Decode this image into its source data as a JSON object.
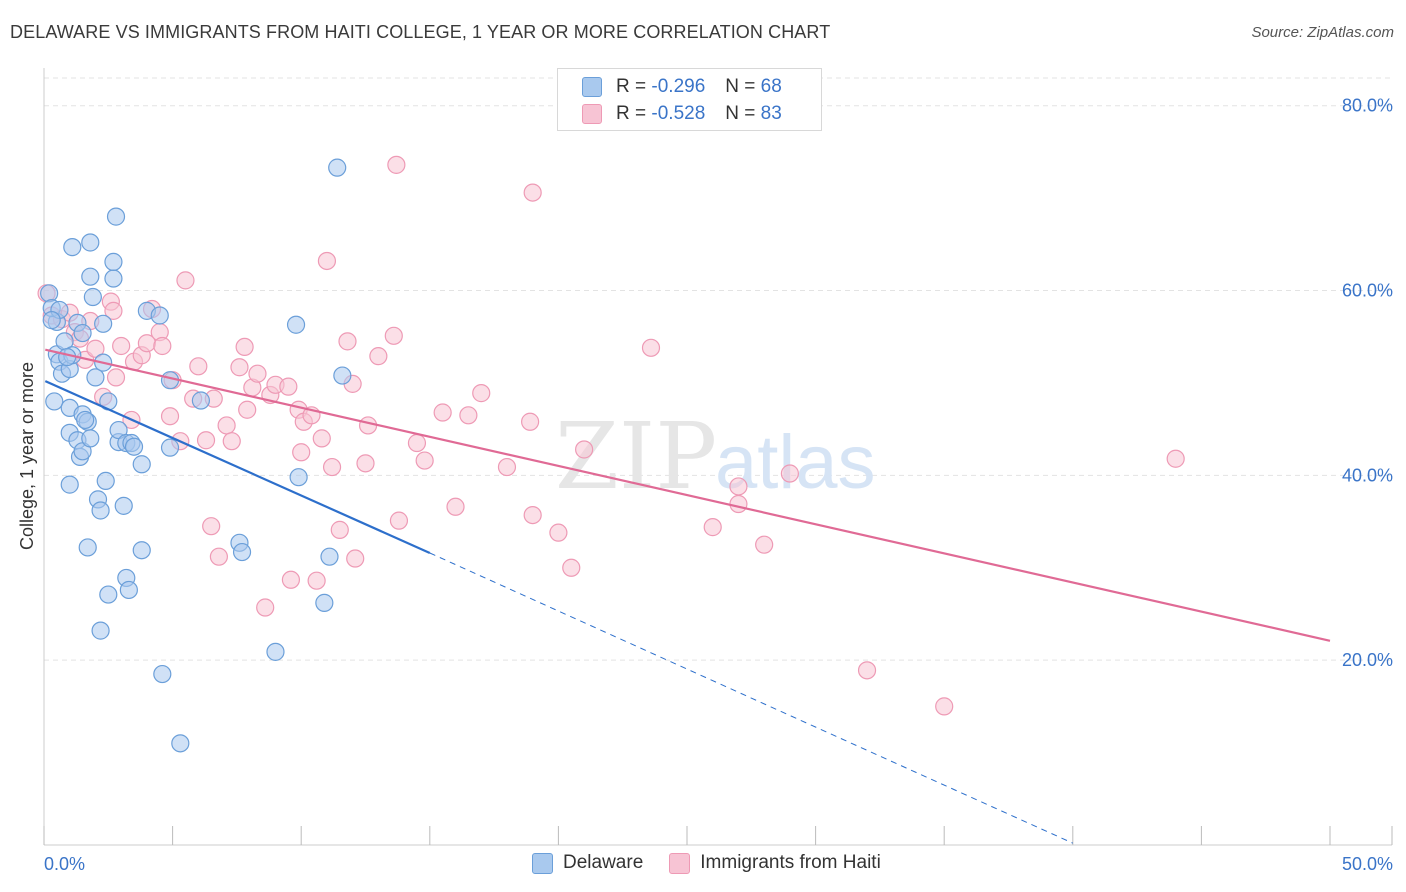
{
  "header": {
    "title": "DELAWARE VS IMMIGRANTS FROM HAITI COLLEGE, 1 YEAR OR MORE CORRELATION CHART",
    "source": "Source: ZipAtlas.com"
  },
  "watermark": {
    "zip": "ZIP",
    "atlas": "atlas"
  },
  "legend": {
    "rows": [
      {
        "r_label": "R =",
        "r_value": "-0.296",
        "n_label": "N =",
        "n_value": "68",
        "color": "#9cc1ec"
      },
      {
        "r_label": "R =",
        "r_value": "-0.528",
        "n_label": "N =",
        "n_value": "83",
        "color": "#f5b8cb"
      }
    ],
    "bottom": [
      "Delaware",
      "Immigrants from Haiti"
    ]
  },
  "colors": {
    "delaware_fill": "#a9c9ee",
    "delaware_stroke": "#6b9fd9",
    "delaware_line": "#2d6fcb",
    "haiti_fill": "#f7c4d4",
    "haiti_stroke": "#ee9ab5",
    "haiti_line": "#e06a95",
    "axis_text": "#3a74c8",
    "grid": "#e3e3e3"
  },
  "chart_data": {
    "type": "scatter",
    "title": "DELAWARE VS IMMIGRANTS FROM HAITI COLLEGE, 1 YEAR OR MORE CORRELATION CHART",
    "xlabel": "",
    "ylabel": "College, 1 year or more",
    "xlim": [
      0,
      50
    ],
    "ylim": [
      0,
      83
    ],
    "x_tick_labels": [
      "0.0%",
      "50.0%"
    ],
    "y_ticks": [
      20,
      40,
      60,
      80
    ],
    "y_tick_labels": [
      "20.0%",
      "40.0%",
      "60.0%",
      "80.0%"
    ],
    "grid": true,
    "legend_position": "top-center",
    "series": [
      {
        "name": "Delaware",
        "R": -0.296,
        "N": 68,
        "trend": {
          "x": [
            0.05,
            15
          ],
          "y": [
            50.2,
            31.6
          ],
          "extended_to": [
            40,
            0.2
          ]
        },
        "points": [
          [
            0.2,
            59.7
          ],
          [
            0.5,
            56.6
          ],
          [
            0.3,
            58.1
          ],
          [
            0.6,
            57.9
          ],
          [
            0.3,
            56.8
          ],
          [
            0.5,
            53.1
          ],
          [
            0.8,
            54.5
          ],
          [
            0.6,
            52.3
          ],
          [
            0.7,
            51.0
          ],
          [
            1.0,
            51.5
          ],
          [
            1.3,
            56.5
          ],
          [
            1.1,
            53.0
          ],
          [
            1.5,
            55.4
          ],
          [
            0.9,
            52.8
          ],
          [
            0.4,
            48.0
          ],
          [
            1.0,
            47.3
          ],
          [
            1.0,
            44.6
          ],
          [
            1.3,
            43.8
          ],
          [
            1.4,
            42.0
          ],
          [
            1.5,
            42.6
          ],
          [
            1.5,
            46.6
          ],
          [
            1.7,
            45.8
          ],
          [
            1.8,
            44.0
          ],
          [
            1.6,
            46.0
          ],
          [
            2.0,
            50.6
          ],
          [
            2.3,
            56.4
          ],
          [
            2.3,
            52.2
          ],
          [
            2.5,
            48.0
          ],
          [
            2.7,
            61.3
          ],
          [
            2.7,
            63.1
          ],
          [
            2.8,
            68.0
          ],
          [
            1.8,
            61.5
          ],
          [
            1.8,
            65.2
          ],
          [
            1.1,
            64.7
          ],
          [
            1.9,
            59.3
          ],
          [
            2.9,
            43.6
          ],
          [
            2.9,
            44.9
          ],
          [
            3.2,
            43.5
          ],
          [
            3.4,
            43.5
          ],
          [
            3.5,
            43.1
          ],
          [
            3.8,
            41.2
          ],
          [
            4.0,
            57.8
          ],
          [
            4.5,
            57.3
          ],
          [
            4.9,
            43.0
          ],
          [
            4.9,
            50.3
          ],
          [
            2.4,
            39.4
          ],
          [
            2.1,
            37.4
          ],
          [
            2.2,
            36.2
          ],
          [
            3.1,
            36.7
          ],
          [
            1.0,
            39.0
          ],
          [
            1.7,
            32.2
          ],
          [
            3.8,
            31.9
          ],
          [
            3.2,
            28.9
          ],
          [
            3.3,
            27.6
          ],
          [
            2.5,
            27.1
          ],
          [
            2.2,
            23.2
          ],
          [
            4.6,
            18.5
          ],
          [
            5.3,
            11.0
          ],
          [
            7.6,
            32.7
          ],
          [
            7.7,
            31.7
          ],
          [
            9.0,
            20.9
          ],
          [
            9.8,
            56.3
          ],
          [
            9.9,
            39.8
          ],
          [
            11.1,
            31.2
          ],
          [
            10.9,
            26.2
          ],
          [
            11.6,
            50.8
          ],
          [
            11.4,
            73.3
          ],
          [
            6.1,
            48.1
          ]
        ]
      },
      {
        "name": "Immigrants from Haiti",
        "R": -0.528,
        "N": 83,
        "trend": {
          "x": [
            0.05,
            50
          ],
          "y": [
            53.6,
            22.1
          ]
        },
        "points": [
          [
            0.1,
            59.7
          ],
          [
            0.3,
            57.3
          ],
          [
            0.7,
            56.9
          ],
          [
            1.0,
            57.6
          ],
          [
            1.2,
            55.5
          ],
          [
            1.4,
            54.8
          ],
          [
            1.6,
            52.5
          ],
          [
            1.8,
            56.7
          ],
          [
            2.0,
            53.7
          ],
          [
            2.3,
            48.5
          ],
          [
            2.6,
            58.8
          ],
          [
            2.7,
            57.8
          ],
          [
            2.8,
            50.6
          ],
          [
            3.0,
            54.0
          ],
          [
            3.4,
            46.0
          ],
          [
            3.5,
            52.3
          ],
          [
            3.8,
            53.0
          ],
          [
            4.0,
            54.3
          ],
          [
            4.2,
            58.0
          ],
          [
            4.5,
            55.5
          ],
          [
            4.6,
            54.0
          ],
          [
            4.9,
            46.4
          ],
          [
            5.0,
            50.3
          ],
          [
            5.3,
            43.7
          ],
          [
            5.5,
            61.1
          ],
          [
            5.8,
            48.3
          ],
          [
            6.0,
            51.8
          ],
          [
            6.3,
            43.8
          ],
          [
            6.5,
            34.5
          ],
          [
            6.6,
            48.3
          ],
          [
            6.8,
            31.2
          ],
          [
            7.1,
            45.4
          ],
          [
            7.3,
            43.7
          ],
          [
            7.6,
            51.7
          ],
          [
            7.8,
            53.9
          ],
          [
            7.9,
            47.1
          ],
          [
            8.1,
            49.5
          ],
          [
            8.3,
            51.0
          ],
          [
            8.6,
            25.7
          ],
          [
            8.8,
            48.7
          ],
          [
            9.0,
            49.8
          ],
          [
            9.5,
            49.6
          ],
          [
            9.6,
            28.7
          ],
          [
            9.9,
            47.1
          ],
          [
            10.0,
            42.5
          ],
          [
            10.1,
            45.8
          ],
          [
            10.4,
            46.5
          ],
          [
            10.6,
            28.6
          ],
          [
            10.8,
            44.0
          ],
          [
            11.2,
            40.9
          ],
          [
            11.0,
            63.2
          ],
          [
            11.5,
            34.1
          ],
          [
            11.8,
            54.5
          ],
          [
            12.0,
            49.9
          ],
          [
            12.1,
            31.0
          ],
          [
            12.5,
            41.3
          ],
          [
            12.6,
            45.4
          ],
          [
            13.0,
            52.9
          ],
          [
            13.6,
            55.1
          ],
          [
            13.8,
            35.1
          ],
          [
            13.7,
            73.6
          ],
          [
            14.5,
            43.5
          ],
          [
            14.8,
            41.6
          ],
          [
            15.5,
            46.8
          ],
          [
            16.0,
            36.6
          ],
          [
            16.5,
            46.5
          ],
          [
            17.0,
            48.9
          ],
          [
            18.0,
            40.9
          ],
          [
            18.9,
            45.8
          ],
          [
            19.0,
            70.6
          ],
          [
            19.0,
            35.7
          ],
          [
            20.0,
            33.8
          ],
          [
            20.5,
            30.0
          ],
          [
            21.0,
            42.8
          ],
          [
            23.6,
            53.8
          ],
          [
            26.0,
            34.4
          ],
          [
            27.0,
            36.9
          ],
          [
            27.0,
            38.8
          ],
          [
            28.0,
            32.5
          ],
          [
            29.0,
            40.2
          ],
          [
            32.0,
            18.9
          ],
          [
            35.0,
            15.0
          ],
          [
            44.0,
            41.8
          ]
        ]
      }
    ]
  }
}
